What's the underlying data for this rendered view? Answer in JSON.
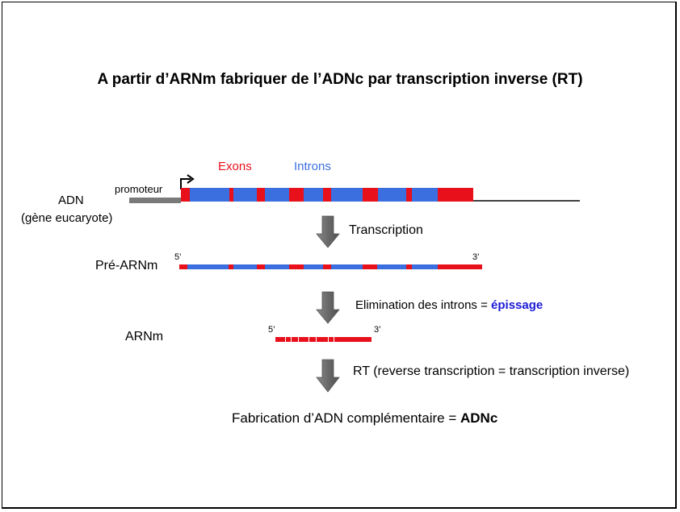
{
  "title": "A partir d’ARNm fabriquer de l’ADNc par transcription inverse (RT)",
  "legend": {
    "exons": "Exons",
    "introns": "Introns"
  },
  "dna": {
    "label": "ADN",
    "sublabel": "(gène eucaryote)",
    "promoter_label": "promoteur"
  },
  "steps": {
    "transcription": "Transcription",
    "splicing_prefix": "Elimination des introns = ",
    "splicing_term": "épissage",
    "rt": "RT (reverse transcription = transcription inverse)"
  },
  "pre_mrna": {
    "label": "Pré-ARNm",
    "five_prime": "5’",
    "three_prime": "3’"
  },
  "mrna": {
    "label": "ARNm",
    "five_prime": "5’",
    "three_prime": "3’"
  },
  "result": {
    "prefix": "Fabrication d’ADN complémentaire = ",
    "term": "ADNc"
  },
  "colors": {
    "exon": "#e8101a",
    "intron": "#3b6fe0",
    "promoter": "#7a7a7a",
    "arrow": "#6e6e6e",
    "splicing_term": "#1a1ad6"
  }
}
